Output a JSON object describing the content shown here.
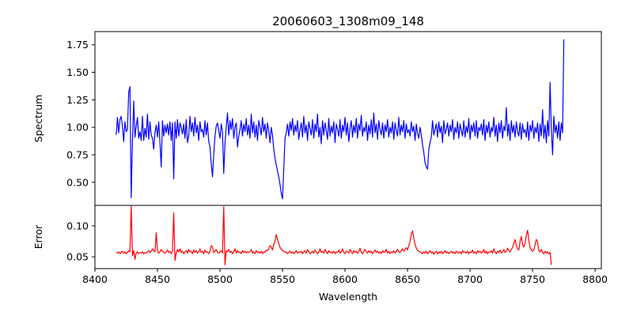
{
  "chart_data": {
    "type": "line",
    "title": "20060603_1308m09_148",
    "xlabel": "Wavelength",
    "xlim": [
      8400,
      8805
    ],
    "xticks": [
      8400,
      8450,
      8500,
      8550,
      8600,
      8650,
      8700,
      8750,
      8800
    ],
    "xtick_labels": [
      "8400",
      "8450",
      "8500",
      "8550",
      "8600",
      "8650",
      "8700",
      "8750",
      "8800"
    ],
    "grid": false,
    "panels": [
      {
        "name": "spectrum",
        "ylabel": "Spectrum",
        "ylim": [
          0.29,
          1.87
        ],
        "yticks": [
          0.5,
          0.75,
          1.0,
          1.25,
          1.5,
          1.75
        ],
        "ytick_labels": [
          "0.50",
          "0.75",
          "1.00",
          "1.25",
          "1.50",
          "1.75"
        ],
        "series": [
          {
            "color": "#0000ff",
            "x_start": 8417,
            "x_step": 1,
            "values": [
              0.93,
              1.09,
              0.95,
              1.07,
              1.1,
              1.01,
              0.87,
              1.05,
              0.96,
              0.98,
              1.32,
              1.37,
              0.36,
              0.87,
              1.24,
              0.91,
              1.01,
              1.09,
              0.9,
              0.96,
              0.88,
              1.1,
              0.88,
              0.99,
              0.91,
              1.12,
              0.89,
              1.05,
              0.93,
              0.9,
              0.8,
              0.95,
              1.02,
              0.91,
              1.05,
              0.86,
              0.64,
              1.06,
              0.92,
              1.02,
              0.95,
              1.03,
              0.93,
              1.05,
              0.88,
              1.04,
              0.53,
              1.05,
              0.9,
              1.07,
              0.92,
              1.04,
              1.0,
              0.94,
              1.03,
              0.9,
              1.07,
              0.86,
              0.92,
              1.1,
              0.96,
              1.04,
              0.92,
              1.09,
              0.95,
              1.02,
              0.88,
              1.05,
              0.96,
              0.98,
              0.91,
              1.06,
              0.93,
              1.04,
              0.87,
              0.82,
              0.67,
              0.55,
              0.75,
              0.92,
              1.01,
              1.04,
              0.97,
              0.9,
              1.03,
              0.96,
              0.58,
              0.86,
              1.0,
              1.13,
              0.93,
              1.06,
              0.98,
              1.08,
              0.9,
              1.0,
              1.04,
              0.82,
              0.92,
              0.98,
              1.06,
              0.92,
              1.03,
              0.96,
              1.08,
              0.93,
              1.02,
              0.9,
              1.12,
              0.95,
              1.05,
              0.91,
              1.02,
              0.88,
              1.06,
              1.0,
              0.93,
              1.09,
              0.96,
              1.03,
              0.9,
              1.04,
              0.97,
              0.86,
              1.0,
              0.93,
              0.8,
              0.72,
              0.66,
              0.6,
              0.55,
              0.48,
              0.4,
              0.35,
              0.62,
              0.9,
              0.95,
              1.03,
              0.92,
              1.05,
              0.97,
              1.08,
              0.93,
              1.02,
              0.96,
              1.06,
              0.89,
              0.98,
              1.04,
              0.91,
              1.1,
              0.95,
              1.02,
              0.88,
              1.05,
              0.99,
              0.93,
              1.07,
              0.9,
              1.03,
              0.96,
              1.12,
              0.91,
              1.0,
              0.85,
              1.06,
              0.93,
              1.04,
              0.97,
              0.89,
              1.08,
              0.92,
              1.01,
              0.95,
              1.05,
              0.86,
              1.03,
              0.98,
              0.92,
              1.07,
              0.9,
              1.02,
              0.96,
              1.09,
              0.93,
              1.04,
              0.87,
              0.99,
              1.06,
              0.91,
              1.02,
              0.95,
              1.08,
              0.9,
              1.03,
              0.97,
              1.11,
              0.92,
              1.0,
              0.96,
              1.05,
              0.88,
              1.02,
              0.94,
              1.07,
              0.91,
              1.13,
              0.95,
              1.03,
              0.89,
              1.06,
              0.98,
              0.93,
              1.04,
              0.9,
              1.02,
              0.96,
              1.07,
              0.91,
              1.0,
              0.95,
              1.05,
              0.89,
              1.04,
              0.97,
              0.92,
              1.09,
              0.93,
              1.02,
              0.96,
              1.06,
              0.9,
              1.03,
              0.95,
              0.98,
              0.92,
              1.05,
              0.96,
              1.01,
              0.88,
              1.03,
              0.94,
              0.9,
              1.0,
              0.93,
              0.84,
              0.77,
              0.68,
              0.64,
              0.62,
              0.8,
              0.86,
              0.91,
              1.06,
              0.93,
              0.98,
              1.03,
              0.91,
              1.05,
              0.95,
              1.01,
              0.86,
              1.06,
              0.94,
              0.98,
              1.04,
              0.92,
              1.02,
              0.96,
              1.07,
              0.89,
              1.0,
              0.95,
              1.05,
              0.9,
              1.03,
              0.97,
              0.92,
              1.06,
              0.91,
              1.01,
              0.95,
              1.08,
              0.89,
              1.02,
              0.96,
              1.04,
              0.92,
              1.06,
              0.9,
              1.0,
              0.97,
              1.03,
              0.93,
              1.07,
              0.88,
              1.02,
              0.95,
              1.05,
              0.91,
              1.0,
              0.96,
              1.09,
              0.92,
              1.02,
              0.87,
              1.04,
              0.95,
              1.06,
              0.9,
              1.01,
              0.97,
              1.18,
              0.92,
              1.03,
              0.88,
              1.06,
              0.95,
              1.02,
              0.91,
              1.05,
              0.96,
              0.92,
              1.04,
              0.89,
              1.03,
              0.95,
              0.98,
              0.91,
              1.05,
              0.88,
              1.02,
              0.96,
              1.06,
              0.9,
              1.0,
              0.95,
              1.04,
              0.87,
              1.03,
              0.92,
              1.16,
              0.9,
              1.02,
              0.86,
              1.06,
              0.92,
              1.41,
              0.98,
              0.75,
              1.1,
              0.95,
              1.02,
              0.9,
              1.05,
              0.88,
              1.04,
              0.95,
              1.8
            ]
          }
        ]
      },
      {
        "name": "error",
        "ylabel": "Error",
        "ylim": [
          0.031,
          0.133
        ],
        "yticks": [
          0.05,
          0.1
        ],
        "ytick_labels": [
          "0.05",
          "0.10"
        ],
        "series": [
          {
            "color": "#ff0000",
            "x_start": 8417,
            "x_step": 1,
            "values": [
              0.057,
              0.056,
              0.058,
              0.055,
              0.057,
              0.059,
              0.056,
              0.058,
              0.055,
              0.057,
              0.06,
              0.058,
              0.132,
              0.052,
              0.06,
              0.046,
              0.056,
              0.058,
              0.055,
              0.057,
              0.056,
              0.058,
              0.055,
              0.057,
              0.056,
              0.058,
              0.06,
              0.057,
              0.059,
              0.063,
              0.06,
              0.058,
              0.089,
              0.06,
              0.056,
              0.058,
              0.062,
              0.059,
              0.057,
              0.056,
              0.058,
              0.061,
              0.057,
              0.059,
              0.055,
              0.06,
              0.121,
              0.044,
              0.056,
              0.062,
              0.058,
              0.063,
              0.057,
              0.059,
              0.055,
              0.058,
              0.06,
              0.056,
              0.062,
              0.058,
              0.059,
              0.055,
              0.061,
              0.057,
              0.06,
              0.056,
              0.058,
              0.063,
              0.057,
              0.059,
              0.055,
              0.061,
              0.057,
              0.058,
              0.055,
              0.059,
              0.068,
              0.066,
              0.057,
              0.059,
              0.062,
              0.057,
              0.056,
              0.058,
              0.06,
              0.056,
              0.131,
              0.037,
              0.06,
              0.058,
              0.062,
              0.057,
              0.059,
              0.055,
              0.058,
              0.063,
              0.056,
              0.06,
              0.057,
              0.058,
              0.055,
              0.06,
              0.057,
              0.059,
              0.056,
              0.058,
              0.057,
              0.059,
              0.062,
              0.056,
              0.058,
              0.055,
              0.06,
              0.057,
              0.058,
              0.056,
              0.059,
              0.055,
              0.058,
              0.057,
              0.061,
              0.06,
              0.063,
              0.068,
              0.066,
              0.061,
              0.07,
              0.075,
              0.086,
              0.078,
              0.072,
              0.065,
              0.063,
              0.06,
              0.059,
              0.057,
              0.058,
              0.055,
              0.057,
              0.059,
              0.056,
              0.058,
              0.055,
              0.057,
              0.06,
              0.056,
              0.058,
              0.057,
              0.059,
              0.055,
              0.058,
              0.06,
              0.056,
              0.062,
              0.058,
              0.055,
              0.057,
              0.059,
              0.056,
              0.061,
              0.058,
              0.055,
              0.057,
              0.063,
              0.057,
              0.059,
              0.056,
              0.062,
              0.058,
              0.055,
              0.06,
              0.057,
              0.058,
              0.056,
              0.059,
              0.055,
              0.058,
              0.057,
              0.061,
              0.056,
              0.058,
              0.063,
              0.057,
              0.055,
              0.059,
              0.058,
              0.056,
              0.062,
              0.058,
              0.055,
              0.06,
              0.057,
              0.059,
              0.056,
              0.058,
              0.064,
              0.057,
              0.055,
              0.059,
              0.062,
              0.058,
              0.056,
              0.06,
              0.057,
              0.059,
              0.055,
              0.058,
              0.061,
              0.057,
              0.059,
              0.056,
              0.058,
              0.055,
              0.06,
              0.057,
              0.058,
              0.062,
              0.056,
              0.059,
              0.055,
              0.058,
              0.057,
              0.06,
              0.056,
              0.059,
              0.062,
              0.058,
              0.057,
              0.06,
              0.063,
              0.059,
              0.062,
              0.065,
              0.061,
              0.068,
              0.075,
              0.086,
              0.092,
              0.08,
              0.07,
              0.064,
              0.061,
              0.059,
              0.058,
              0.057,
              0.055,
              0.058,
              0.056,
              0.059,
              0.055,
              0.057,
              0.06,
              0.056,
              0.058,
              0.054,
              0.057,
              0.059,
              0.055,
              0.058,
              0.056,
              0.059,
              0.055,
              0.057,
              0.06,
              0.056,
              0.058,
              0.055,
              0.057,
              0.059,
              0.056,
              0.058,
              0.055,
              0.059,
              0.057,
              0.056,
              0.058,
              0.055,
              0.06,
              0.057,
              0.058,
              0.056,
              0.059,
              0.055,
              0.058,
              0.057,
              0.061,
              0.056,
              0.058,
              0.055,
              0.06,
              0.057,
              0.059,
              0.056,
              0.058,
              0.062,
              0.056,
              0.059,
              0.055,
              0.058,
              0.057,
              0.06,
              0.056,
              0.063,
              0.058,
              0.055,
              0.059,
              0.057,
              0.061,
              0.056,
              0.058,
              0.062,
              0.057,
              0.059,
              0.064,
              0.06,
              0.058,
              0.062,
              0.065,
              0.072,
              0.078,
              0.068,
              0.063,
              0.061,
              0.075,
              0.083,
              0.07,
              0.066,
              0.072,
              0.085,
              0.093,
              0.077,
              0.064,
              0.062,
              0.059,
              0.061,
              0.07,
              0.078,
              0.074,
              0.06,
              0.058,
              0.062,
              0.057,
              0.055,
              0.059,
              0.056,
              0.058,
              0.055,
              0.057,
              0.037
            ]
          }
        ]
      }
    ]
  }
}
